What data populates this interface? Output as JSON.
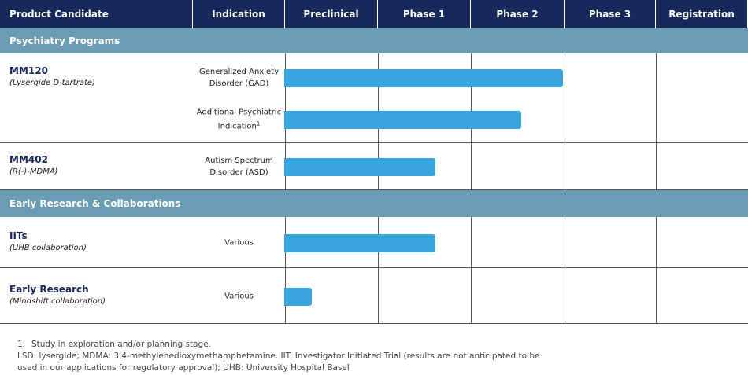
{
  "header": [
    "Product Candidate",
    "Indication",
    "Preclinical",
    "Phase 1",
    "Phase 2",
    "Phase 3",
    "Registration"
  ],
  "sections": [
    {
      "title": "Psychiatry Programs",
      "rows": [
        {
          "name": "MM120",
          "subtitle": "(Lysergide D-tartrate)",
          "indications": [
            {
              "lines": [
                "Generalized Anxiety",
                "Disorder (GAD)"
              ],
              "progress": 3.0
            },
            {
              "lines": [
                "Additional Psychiatric",
                "Indication"
              ],
              "footnote_ref": "1",
              "progress": 2.55
            }
          ]
        },
        {
          "name": "MM402",
          "subtitle": "(R(-)-MDMA)",
          "indications": [
            {
              "lines": [
                "Autism Spectrum",
                "Disorder (ASD)"
              ],
              "progress": 1.63
            }
          ]
        }
      ]
    },
    {
      "title": "Early Research & Collaborations",
      "rows": [
        {
          "name": "IITs",
          "subtitle": "(UHB collaboration)",
          "indications": [
            {
              "lines": [
                "Various"
              ],
              "progress": 1.63
            }
          ]
        },
        {
          "name": "Early Research",
          "subtitle": "(Mindshift collaboration)",
          "indications": [
            {
              "lines": [
                "Various"
              ],
              "progress": 0.3
            }
          ]
        }
      ]
    }
  ],
  "footnotes": {
    "number": "1.",
    "text": "Study in exploration and/or planning stage.",
    "lines": [
      "LSD: lysergide; MDMA: 3,4-methylenedioxymethamphetamine. IIT: Investigator Initiated Trial (results are not anticipated to be",
      "used in our applications for regulatory approval); UHB: University Hospital Basel"
    ]
  }
}
